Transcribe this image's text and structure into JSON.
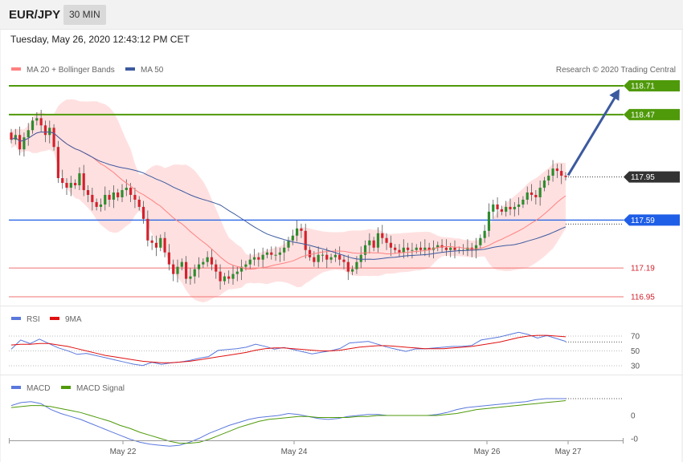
{
  "header": {
    "pair": "EUR/JPY",
    "timeframe": "30 MIN",
    "datetime": "Tuesday, May 26, 2020 12:43:12 PM CET",
    "copyright": "Research © 2020 Trading Central"
  },
  "colors": {
    "up": "#2e8b2e",
    "down": "#d2222d",
    "bollinger": "#ff8080",
    "ma50": "#3c5aa0",
    "resistance": "#4f9a0a",
    "pivot": "#1f5ee6",
    "support": "#f07070",
    "last": "#333333",
    "rsi": "#5a78dc",
    "rsi_ma": "#e01010",
    "macd": "#5a78dc",
    "macd_signal": "#4f9a0a"
  },
  "chart_data": [
    {
      "type": "candlestick",
      "legend": [
        {
          "name": "MA 20 + Bollinger Bands",
          "color": "#ff8080"
        },
        {
          "name": "MA 50",
          "color": "#3c5aa0"
        }
      ],
      "x": [
        "May 22",
        "May 24",
        "May 26",
        "May 27"
      ],
      "ylim": [
        116.94,
        119.0
      ],
      "levels": [
        {
          "value": "118.71",
          "kind": "resistance"
        },
        {
          "value": "118.47",
          "kind": "resistance"
        },
        {
          "value": "117.95",
          "kind": "last"
        },
        {
          "value": "117.59",
          "kind": "pivot"
        },
        {
          "value": "117.19",
          "kind": "support"
        },
        {
          "value": "116.95",
          "kind": "support"
        }
      ],
      "closes": [
        118.26,
        118.3,
        118.18,
        118.28,
        118.34,
        118.42,
        118.44,
        118.38,
        118.3,
        118.36,
        118.2,
        117.94,
        117.9,
        117.86,
        117.9,
        117.88,
        117.98,
        117.84,
        117.8,
        117.74,
        117.7,
        117.72,
        117.8,
        117.76,
        117.82,
        117.78,
        117.84,
        117.86,
        117.8,
        117.76,
        117.7,
        117.6,
        117.42,
        117.4,
        117.36,
        117.44,
        117.32,
        117.22,
        117.14,
        117.2,
        117.24,
        117.1,
        117.12,
        117.18,
        117.22,
        117.24,
        117.28,
        117.22,
        117.16,
        117.08,
        117.12,
        117.1,
        117.14,
        117.16,
        117.2,
        117.22,
        117.26,
        117.28,
        117.26,
        117.3,
        117.32,
        117.3,
        117.3,
        117.32,
        117.36,
        117.42,
        117.46,
        117.52,
        117.5,
        117.34,
        117.28,
        117.24,
        117.3,
        117.3,
        117.26,
        117.28,
        117.3,
        117.26,
        117.24,
        117.16,
        117.18,
        117.24,
        117.3,
        117.38,
        117.42,
        117.36,
        117.48,
        117.44,
        117.4,
        117.36,
        117.34,
        117.32,
        117.36,
        117.34,
        117.34,
        117.36,
        117.34,
        117.36,
        117.34,
        117.36,
        117.38,
        117.36,
        117.34,
        117.36,
        117.34,
        117.34,
        117.34,
        117.36,
        117.34,
        117.38,
        117.44,
        117.5,
        117.66,
        117.72,
        117.68,
        117.66,
        117.7,
        117.68,
        117.7,
        117.72,
        117.76,
        117.82,
        117.8,
        117.78,
        117.86,
        117.92,
        117.96,
        118.02,
        118.0,
        117.96,
        117.95
      ],
      "arrow_target": 118.71
    },
    {
      "type": "line",
      "legend": [
        {
          "name": "RSI",
          "color": "#5a78dc"
        },
        {
          "name": "9MA",
          "color": "#e01010"
        }
      ],
      "yticks": [
        "70",
        "50",
        "30"
      ],
      "ylim": [
        20,
        88
      ],
      "series": [
        {
          "name": "RSI",
          "values": [
            55,
            62,
            58,
            65,
            60,
            55,
            52,
            48,
            44,
            42,
            40,
            38,
            36,
            34,
            33,
            32,
            30,
            33,
            35,
            38,
            42,
            45,
            48,
            50,
            52,
            55,
            60,
            58,
            55,
            52,
            50,
            48,
            46,
            49,
            52,
            56,
            58,
            60,
            62,
            59,
            56,
            54,
            52,
            50,
            51,
            53,
            55,
            57,
            58,
            60,
            62,
            65,
            68,
            72,
            76,
            74,
            70,
            68,
            65,
            62
          ]
        },
        {
          "name": "9MA",
          "values": [
            58,
            59,
            59,
            60,
            60,
            58,
            56,
            53,
            50,
            47,
            44,
            42,
            40,
            38,
            36,
            35,
            34,
            34,
            35,
            36,
            38,
            40,
            42,
            44,
            46,
            48,
            51,
            53,
            54,
            54,
            53,
            52,
            51,
            50,
            50,
            51,
            53,
            55,
            56,
            57,
            57,
            56,
            55,
            54,
            53,
            53,
            53,
            54,
            55,
            56,
            58,
            60,
            62,
            65,
            68,
            70,
            71,
            71,
            70,
            69
          ]
        }
      ]
    },
    {
      "type": "line",
      "legend": [
        {
          "name": "MACD",
          "color": "#5a78dc"
        },
        {
          "name": "MACD Signal",
          "color": "#4f9a0a"
        }
      ],
      "yticks": [
        "0",
        "-0"
      ],
      "ylim": [
        -0.38,
        0.32
      ],
      "series": [
        {
          "name": "MACD",
          "values": [
            0.1,
            0.13,
            0.14,
            0.12,
            0.06,
            0.02,
            -0.01,
            -0.04,
            -0.08,
            -0.12,
            -0.16,
            -0.2,
            -0.24,
            -0.27,
            -0.29,
            -0.3,
            -0.31,
            -0.3,
            -0.27,
            -0.23,
            -0.18,
            -0.14,
            -0.1,
            -0.07,
            -0.04,
            -0.02,
            -0.01,
            0.0,
            0.02,
            0.01,
            -0.01,
            -0.03,
            -0.04,
            -0.03,
            -0.01,
            0.0,
            0.01,
            0.01,
            0.0,
            0.0,
            0.0,
            0.0,
            0.0,
            0.01,
            0.03,
            0.06,
            0.08,
            0.09,
            0.1,
            0.11,
            0.12,
            0.13,
            0.14,
            0.16,
            0.17,
            0.17,
            0.17
          ]
        },
        {
          "name": "MACD Signal",
          "values": [
            0.08,
            0.09,
            0.1,
            0.1,
            0.09,
            0.07,
            0.05,
            0.03,
            0.0,
            -0.03,
            -0.06,
            -0.1,
            -0.13,
            -0.17,
            -0.2,
            -0.23,
            -0.26,
            -0.28,
            -0.28,
            -0.27,
            -0.24,
            -0.2,
            -0.16,
            -0.12,
            -0.09,
            -0.06,
            -0.04,
            -0.03,
            -0.02,
            -0.01,
            -0.01,
            -0.02,
            -0.02,
            -0.02,
            -0.02,
            -0.01,
            -0.01,
            0.0,
            0.0,
            0.0,
            0.0,
            0.0,
            0.0,
            0.0,
            0.01,
            0.02,
            0.04,
            0.06,
            0.07,
            0.08,
            0.09,
            0.1,
            0.11,
            0.12,
            0.13,
            0.14,
            0.15
          ]
        }
      ]
    }
  ]
}
